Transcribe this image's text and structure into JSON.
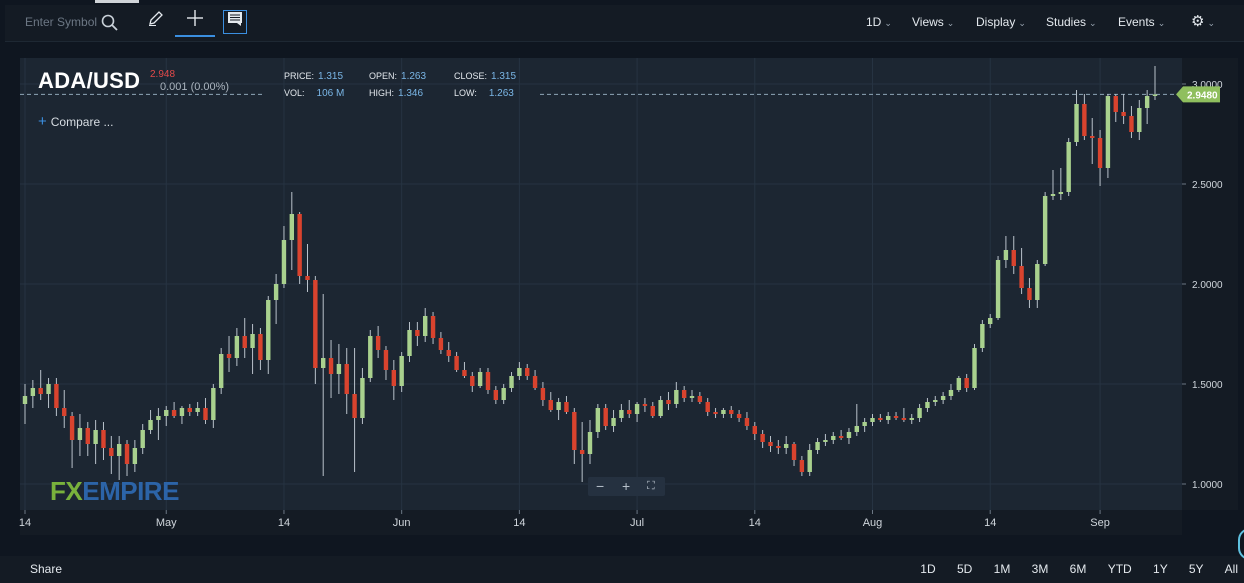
{
  "toolbar": {
    "search_placeholder": "Enter Symbol",
    "interval": "1D",
    "menus": [
      "Views",
      "Display",
      "Studies",
      "Events"
    ]
  },
  "symbol": {
    "name": "ADA/USD",
    "last_price": "2.948",
    "change": "0.001 (0.00%)"
  },
  "stats": {
    "price_label": "PRICE:",
    "price": "1.315",
    "open_label": "OPEN:",
    "open": "1.263",
    "close_label": "CLOSE:",
    "close": "1.315",
    "vol_label": "VOL:",
    "vol": "106 M",
    "high_label": "HIGH:",
    "high": "1.346",
    "low_label": "LOW:",
    "low": "1.263"
  },
  "compare_label": "Compare ...",
  "price_tag": "2.9480",
  "logo": {
    "part1": "FX",
    "part2": "EMPIRE"
  },
  "bottom": {
    "share_label": "Share",
    "ranges": [
      "1D",
      "5D",
      "1M",
      "3M",
      "6M",
      "YTD",
      "1Y",
      "5Y",
      "All"
    ]
  },
  "colors": {
    "up": "#a9d18e",
    "down": "#d9432e",
    "background": "#1c2632",
    "accent": "#3b8fe0"
  },
  "chart_data": {
    "type": "candlestick",
    "y_ticks": [
      "1.0000",
      "1.5000",
      "2.0000",
      "2.5000",
      "3.0000"
    ],
    "ylim": [
      0.87,
      3.13
    ],
    "x_ticks": [
      "14",
      "May",
      "14",
      "Jun",
      "14",
      "Jul",
      "14",
      "Aug",
      "14",
      "Sep"
    ],
    "last_value": 2.948,
    "candles": [
      [
        1.4,
        1.5,
        1.3,
        1.44
      ],
      [
        1.44,
        1.52,
        1.38,
        1.48
      ],
      [
        1.48,
        1.57,
        1.42,
        1.45
      ],
      [
        1.45,
        1.53,
        1.38,
        1.5
      ],
      [
        1.5,
        1.53,
        1.34,
        1.38
      ],
      [
        1.38,
        1.47,
        1.28,
        1.34
      ],
      [
        1.34,
        1.36,
        1.08,
        1.22
      ],
      [
        1.22,
        1.35,
        1.14,
        1.28
      ],
      [
        1.28,
        1.31,
        1.14,
        1.2
      ],
      [
        1.2,
        1.32,
        1.1,
        1.27
      ],
      [
        1.27,
        1.31,
        1.12,
        1.18
      ],
      [
        1.18,
        1.24,
        1.05,
        1.14
      ],
      [
        1.14,
        1.24,
        1.02,
        1.2
      ],
      [
        1.2,
        1.22,
        1.04,
        1.1
      ],
      [
        1.1,
        1.22,
        1.06,
        1.18
      ],
      [
        1.18,
        1.3,
        1.15,
        1.27
      ],
      [
        1.27,
        1.37,
        1.25,
        1.32
      ],
      [
        1.32,
        1.38,
        1.22,
        1.34
      ],
      [
        1.34,
        1.39,
        1.29,
        1.37
      ],
      [
        1.37,
        1.41,
        1.33,
        1.34
      ],
      [
        1.34,
        1.39,
        1.3,
        1.38
      ],
      [
        1.38,
        1.4,
        1.34,
        1.36
      ],
      [
        1.36,
        1.41,
        1.34,
        1.38
      ],
      [
        1.38,
        1.43,
        1.3,
        1.32
      ],
      [
        1.32,
        1.5,
        1.28,
        1.48
      ],
      [
        1.48,
        1.68,
        1.45,
        1.65
      ],
      [
        1.65,
        1.74,
        1.56,
        1.63
      ],
      [
        1.63,
        1.78,
        1.59,
        1.74
      ],
      [
        1.74,
        1.83,
        1.63,
        1.68
      ],
      [
        1.68,
        1.8,
        1.55,
        1.75
      ],
      [
        1.75,
        1.78,
        1.57,
        1.62
      ],
      [
        1.62,
        1.94,
        1.55,
        1.92
      ],
      [
        1.92,
        2.05,
        1.8,
        2.0
      ],
      [
        2.0,
        2.29,
        1.98,
        2.22
      ],
      [
        2.22,
        2.46,
        2.07,
        2.35
      ],
      [
        2.35,
        2.36,
        2.0,
        2.04
      ],
      [
        2.04,
        2.2,
        1.96,
        2.02
      ],
      [
        2.02,
        2.04,
        1.5,
        1.58
      ],
      [
        1.58,
        1.95,
        1.04,
        1.63
      ],
      [
        1.63,
        1.72,
        1.43,
        1.55
      ],
      [
        1.55,
        1.7,
        1.45,
        1.6
      ],
      [
        1.6,
        1.68,
        1.35,
        1.45
      ],
      [
        1.45,
        1.68,
        1.06,
        1.33
      ],
      [
        1.33,
        1.58,
        1.3,
        1.53
      ],
      [
        1.53,
        1.77,
        1.51,
        1.74
      ],
      [
        1.74,
        1.79,
        1.63,
        1.67
      ],
      [
        1.67,
        1.69,
        1.52,
        1.57
      ],
      [
        1.57,
        1.62,
        1.42,
        1.49
      ],
      [
        1.49,
        1.66,
        1.46,
        1.64
      ],
      [
        1.64,
        1.81,
        1.61,
        1.77
      ],
      [
        1.77,
        1.81,
        1.69,
        1.74
      ],
      [
        1.74,
        1.88,
        1.71,
        1.84
      ],
      [
        1.84,
        1.86,
        1.7,
        1.73
      ],
      [
        1.73,
        1.76,
        1.65,
        1.67
      ],
      [
        1.67,
        1.71,
        1.61,
        1.64
      ],
      [
        1.64,
        1.66,
        1.56,
        1.57
      ],
      [
        1.57,
        1.61,
        1.53,
        1.54
      ],
      [
        1.54,
        1.56,
        1.46,
        1.49
      ],
      [
        1.49,
        1.58,
        1.48,
        1.56
      ],
      [
        1.56,
        1.58,
        1.45,
        1.47
      ],
      [
        1.47,
        1.49,
        1.4,
        1.42
      ],
      [
        1.42,
        1.5,
        1.4,
        1.48
      ],
      [
        1.48,
        1.56,
        1.46,
        1.54
      ],
      [
        1.54,
        1.61,
        1.52,
        1.58
      ],
      [
        1.58,
        1.6,
        1.52,
        1.54
      ],
      [
        1.54,
        1.57,
        1.47,
        1.48
      ],
      [
        1.48,
        1.51,
        1.39,
        1.42
      ],
      [
        1.42,
        1.46,
        1.36,
        1.37
      ],
      [
        1.37,
        1.43,
        1.32,
        1.41
      ],
      [
        1.41,
        1.44,
        1.35,
        1.36
      ],
      [
        1.36,
        1.38,
        1.1,
        1.17
      ],
      [
        1.17,
        1.31,
        1.01,
        1.15
      ],
      [
        1.15,
        1.32,
        1.1,
        1.26
      ],
      [
        1.26,
        1.4,
        1.23,
        1.38
      ],
      [
        1.38,
        1.4,
        1.27,
        1.29
      ],
      [
        1.29,
        1.37,
        1.26,
        1.33
      ],
      [
        1.33,
        1.4,
        1.31,
        1.37
      ],
      [
        1.37,
        1.42,
        1.33,
        1.35
      ],
      [
        1.35,
        1.41,
        1.31,
        1.4
      ],
      [
        1.4,
        1.43,
        1.36,
        1.39
      ],
      [
        1.39,
        1.41,
        1.33,
        1.34
      ],
      [
        1.34,
        1.44,
        1.33,
        1.42
      ],
      [
        1.42,
        1.46,
        1.37,
        1.4
      ],
      [
        1.4,
        1.51,
        1.38,
        1.47
      ],
      [
        1.47,
        1.49,
        1.41,
        1.43
      ],
      [
        1.43,
        1.47,
        1.41,
        1.44
      ],
      [
        1.44,
        1.46,
        1.4,
        1.41
      ],
      [
        1.41,
        1.43,
        1.34,
        1.36
      ],
      [
        1.36,
        1.38,
        1.33,
        1.35
      ],
      [
        1.35,
        1.38,
        1.33,
        1.37
      ],
      [
        1.37,
        1.39,
        1.33,
        1.35
      ],
      [
        1.35,
        1.37,
        1.31,
        1.33
      ],
      [
        1.33,
        1.36,
        1.27,
        1.29
      ],
      [
        1.29,
        1.31,
        1.22,
        1.25
      ],
      [
        1.25,
        1.27,
        1.18,
        1.21
      ],
      [
        1.21,
        1.24,
        1.16,
        1.19
      ],
      [
        1.19,
        1.22,
        1.15,
        1.18
      ],
      [
        1.18,
        1.24,
        1.15,
        1.2
      ],
      [
        1.2,
        1.21,
        1.09,
        1.12
      ],
      [
        1.12,
        1.14,
        1.04,
        1.06
      ],
      [
        1.06,
        1.2,
        1.04,
        1.17
      ],
      [
        1.17,
        1.23,
        1.15,
        1.21
      ],
      [
        1.21,
        1.25,
        1.19,
        1.22
      ],
      [
        1.22,
        1.26,
        1.2,
        1.24
      ],
      [
        1.24,
        1.27,
        1.22,
        1.23
      ],
      [
        1.23,
        1.28,
        1.2,
        1.26
      ],
      [
        1.26,
        1.4,
        1.24,
        1.29
      ],
      [
        1.29,
        1.33,
        1.26,
        1.31
      ],
      [
        1.31,
        1.35,
        1.29,
        1.33
      ],
      [
        1.33,
        1.35,
        1.31,
        1.32
      ],
      [
        1.32,
        1.36,
        1.3,
        1.34
      ],
      [
        1.34,
        1.36,
        1.32,
        1.33
      ],
      [
        1.33,
        1.38,
        1.31,
        1.32
      ],
      [
        1.32,
        1.35,
        1.3,
        1.33
      ],
      [
        1.33,
        1.4,
        1.31,
        1.38
      ],
      [
        1.38,
        1.43,
        1.36,
        1.41
      ],
      [
        1.41,
        1.44,
        1.39,
        1.42
      ],
      [
        1.42,
        1.46,
        1.4,
        1.44
      ],
      [
        1.44,
        1.5,
        1.42,
        1.47
      ],
      [
        1.47,
        1.54,
        1.46,
        1.53
      ],
      [
        1.53,
        1.55,
        1.46,
        1.48
      ],
      [
        1.48,
        1.7,
        1.47,
        1.68
      ],
      [
        1.68,
        1.82,
        1.66,
        1.8
      ],
      [
        1.8,
        1.85,
        1.78,
        1.83
      ],
      [
        1.83,
        2.14,
        1.82,
        2.12
      ],
      [
        2.12,
        2.24,
        2.08,
        2.17
      ],
      [
        2.17,
        2.24,
        2.05,
        2.09
      ],
      [
        2.09,
        2.18,
        1.95,
        1.98
      ],
      [
        1.98,
        2.03,
        1.88,
        1.92
      ],
      [
        1.92,
        2.12,
        1.88,
        2.1
      ],
      [
        2.1,
        2.46,
        2.09,
        2.44
      ],
      [
        2.44,
        2.57,
        2.42,
        2.45
      ],
      [
        2.45,
        2.58,
        2.42,
        2.46
      ],
      [
        2.46,
        2.73,
        2.44,
        2.71
      ],
      [
        2.71,
        2.97,
        2.69,
        2.9
      ],
      [
        2.9,
        2.95,
        2.72,
        2.74
      ],
      [
        2.74,
        2.83,
        2.6,
        2.73
      ],
      [
        2.73,
        2.77,
        2.49,
        2.58
      ],
      [
        2.58,
        2.95,
        2.53,
        2.94
      ],
      [
        2.94,
        2.95,
        2.81,
        2.86
      ],
      [
        2.86,
        2.95,
        2.8,
        2.84
      ],
      [
        2.84,
        2.89,
        2.73,
        2.76
      ],
      [
        2.76,
        2.92,
        2.72,
        2.88
      ],
      [
        2.88,
        2.97,
        2.8,
        2.94
      ],
      [
        2.94,
        3.09,
        2.92,
        2.948
      ]
    ]
  }
}
